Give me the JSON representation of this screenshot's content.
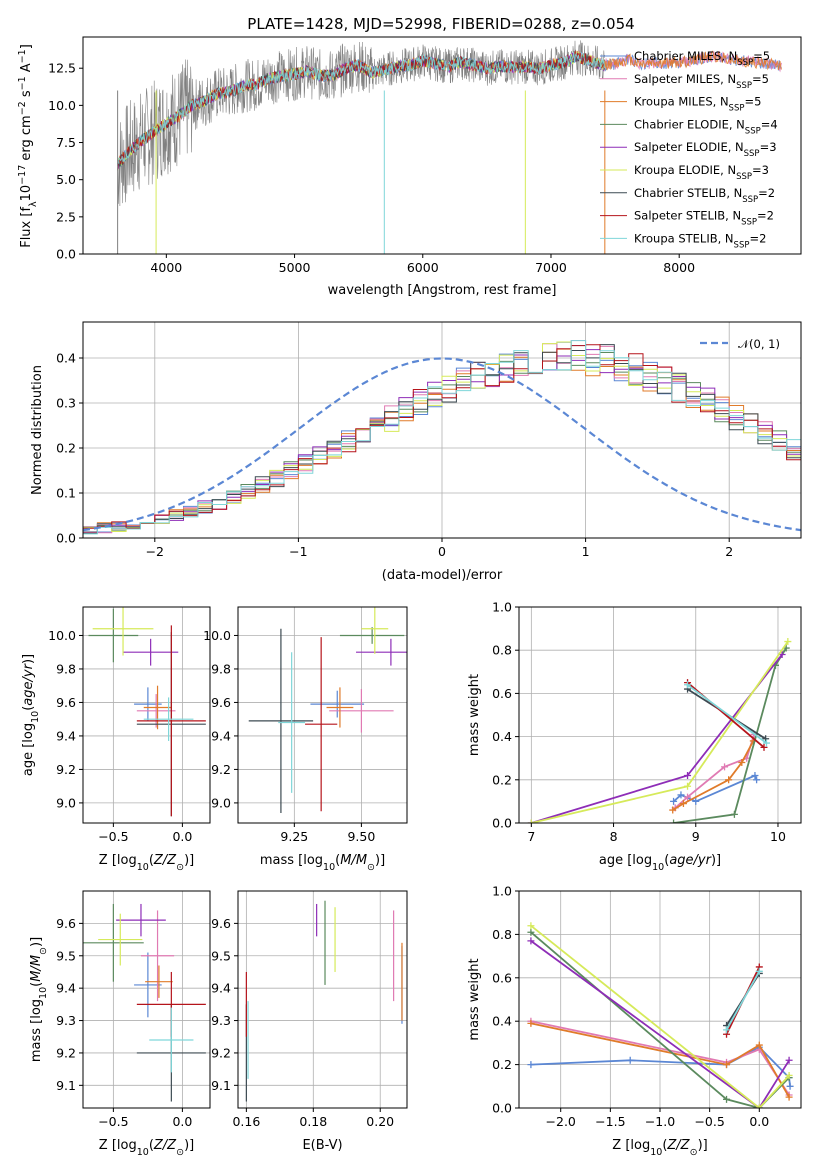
{
  "figure": {
    "title": "PLATE=1428, MJD=52998, FIBERID=0288, z=0.054"
  },
  "models": [
    {
      "name": "Chabrier MILES",
      "nssp": "5",
      "color": "#5b87d4"
    },
    {
      "name": "Salpeter MILES",
      "nssp": "5",
      "color": "#e07ab3"
    },
    {
      "name": "Kroupa MILES",
      "nssp": "5",
      "color": "#e07b2a"
    },
    {
      "name": "Chabrier ELODIE",
      "nssp": "4",
      "color": "#5b8a5e"
    },
    {
      "name": "Salpeter ELODIE",
      "nssp": "3",
      "color": "#8e2db7"
    },
    {
      "name": "Kroupa ELODIE",
      "nssp": "3",
      "color": "#d6ea5a"
    },
    {
      "name": "Chabrier STELIB",
      "nssp": "2",
      "color": "#3c4a52"
    },
    {
      "name": "Salpeter STELIB",
      "nssp": "2",
      "color": "#b5141b"
    },
    {
      "name": "Kroupa STELIB",
      "nssp": "2",
      "color": "#7fd6d9"
    }
  ],
  "chart_data": [
    {
      "id": "spectrum",
      "type": "line",
      "xlabel": "wavelength [Angstrom, rest frame]",
      "ylabel": "Flux [f_λ 10^-17 erg cm^-2 s^-1 A^-1]",
      "xlim": [
        3350,
        8950
      ],
      "ylim": [
        0,
        14.6
      ],
      "xticks": [
        "4000",
        "5000",
        "6000",
        "7000",
        "8000"
      ],
      "yticks": [
        "0.0",
        "2.5",
        "5.0",
        "7.5",
        "10.0",
        "12.5"
      ],
      "data_color": "#808080",
      "data_xrange": [
        3620,
        7420
      ],
      "x": [
        3620,
        3700,
        3800,
        3900,
        4000,
        4100,
        4200,
        4300,
        4400,
        4500,
        4600,
        4700,
        4800,
        4900,
        5000,
        5100,
        5200,
        5300,
        5400,
        5500,
        5600,
        5700,
        5800,
        5900,
        6000,
        6100,
        6200,
        6300,
        6400,
        6500,
        6600,
        6700,
        6800,
        6900,
        7000,
        7100,
        7200,
        7300,
        7400,
        7500,
        7600,
        7700,
        7800,
        7900,
        8000,
        8100,
        8200,
        8300,
        8400,
        8500,
        8600,
        8700,
        8800
      ],
      "model_flux": [
        6.0,
        6.8,
        7.6,
        8.2,
        8.8,
        9.3,
        10.0,
        10.3,
        10.8,
        10.9,
        11.3,
        11.4,
        11.8,
        12.0,
        12.1,
        12.3,
        12.0,
        12.0,
        12.5,
        12.7,
        12.2,
        12.4,
        12.6,
        12.7,
        13.0,
        12.8,
        12.6,
        12.9,
        12.7,
        12.5,
        12.6,
        12.6,
        12.6,
        12.5,
        12.7,
        12.9,
        13.3,
        13.0,
        12.7,
        12.8,
        13.1,
        12.8,
        12.9,
        12.8,
        12.9,
        13.0,
        13.2,
        13.3,
        13.1,
        13.0,
        12.9,
        12.8,
        12.7
      ]
    },
    {
      "id": "residuals",
      "type": "step",
      "xlabel": "(data-model)/error",
      "ylabel": "Normed distribution",
      "xlim": [
        -2.5,
        2.5
      ],
      "ylim": [
        0,
        0.48
      ],
      "xticks": [
        "−2",
        "−1",
        "0",
        "1",
        "2"
      ],
      "yticks": [
        "0.0",
        "0.1",
        "0.2",
        "0.3",
        "0.4"
      ],
      "bin_width": 0.1,
      "bin_start": -2.5,
      "base": [
        0.02,
        0.022,
        0.025,
        0.03,
        0.035,
        0.042,
        0.05,
        0.058,
        0.068,
        0.078,
        0.09,
        0.103,
        0.118,
        0.133,
        0.15,
        0.166,
        0.183,
        0.2,
        0.216,
        0.233,
        0.25,
        0.266,
        0.283,
        0.3,
        0.315,
        0.33,
        0.345,
        0.36,
        0.372,
        0.383,
        0.392,
        0.398,
        0.402,
        0.404,
        0.402,
        0.398,
        0.392,
        0.384,
        0.374,
        0.362,
        0.349,
        0.334,
        0.318,
        0.302,
        0.285,
        0.267,
        0.25,
        0.232,
        0.215,
        0.198,
        0.181,
        0.165,
        0.149,
        0.135,
        0.121,
        0.108,
        0.096,
        0.085,
        0.075,
        0.066,
        0.058,
        0.051,
        0.045,
        0.04,
        0.035,
        0.031,
        0.028,
        0.026,
        0.024,
        0.022
      ],
      "normal_label": "𝒩(0, 1)",
      "normal_color": "#5b87d4"
    },
    {
      "id": "z-age",
      "type": "errorbar",
      "xlabel": "Z [log10(Z/Z⊙)]",
      "ylabel": "age [log10(age/yr)]",
      "xlim": [
        -0.72,
        0.2
      ],
      "ylim": [
        8.88,
        10.17
      ],
      "xticks": [
        "−0.5",
        "0.0"
      ],
      "xtick_vals": [
        -0.5,
        0.0
      ],
      "yticks": [
        "9.0",
        "9.2",
        "9.4",
        "9.6",
        "9.8",
        "10.0"
      ],
      "ytick_vals": [
        9.0,
        9.2,
        9.4,
        9.6,
        9.8,
        10.0
      ],
      "points": [
        {
          "x": -0.25,
          "y": 9.59,
          "xerr": 0.1,
          "yerr": 0.1
        },
        {
          "x": -0.19,
          "y": 9.55,
          "xerr": 0.14,
          "yerr": 0.1
        },
        {
          "x": -0.18,
          "y": 9.57,
          "xerr": 0.1,
          "yerr": 0.13
        },
        {
          "x": -0.5,
          "y": 10.0,
          "xerr": 0.18,
          "yerr": 0.16
        },
        {
          "x": -0.23,
          "y": 9.9,
          "xerr": 0.2,
          "yerr": 0.08
        },
        {
          "x": -0.43,
          "y": 10.04,
          "xerr": 0.22,
          "yerr": 0.16
        },
        {
          "x": -0.08,
          "y": 9.47,
          "xerr": 0.25,
          "yerr": 0.55
        },
        {
          "x": -0.08,
          "y": 9.49,
          "xerr": 0.25,
          "yerr": 0.57
        },
        {
          "x": -0.1,
          "y": 9.5,
          "xerr": 0.18,
          "yerr": 0.13
        }
      ]
    },
    {
      "id": "mass-age",
      "type": "errorbar",
      "xlabel": "mass [log10(M/M⊙)]",
      "ylabel": "",
      "xlim": [
        9.04,
        9.67
      ],
      "ylim": [
        8.88,
        10.17
      ],
      "xticks": [
        "9.25",
        "9.50"
      ],
      "xtick_vals": [
        9.25,
        9.5
      ],
      "yticks": [
        "9.0",
        "9.2",
        "9.4",
        "9.6",
        "9.8",
        "10.0"
      ],
      "ytick_vals": [
        9.0,
        9.2,
        9.4,
        9.6,
        9.8,
        10.0
      ],
      "points": [
        {
          "x": 9.41,
          "y": 9.59,
          "xerr": 0.1,
          "yerr": 0.08
        },
        {
          "x": 9.5,
          "y": 9.55,
          "xerr": 0.12,
          "yerr": 0.13
        },
        {
          "x": 9.42,
          "y": 9.57,
          "xerr": 0.05,
          "yerr": 0.12
        },
        {
          "x": 9.54,
          "y": 10.0,
          "xerr": 0.12,
          "yerr": 0.05
        },
        {
          "x": 9.61,
          "y": 9.9,
          "xerr": 0.13,
          "yerr": 0.08
        },
        {
          "x": 9.55,
          "y": 10.04,
          "xerr": 0.05,
          "yerr": 0.15
        },
        {
          "x": 9.2,
          "y": 9.49,
          "xerr": 0.12,
          "yerr": 0.55
        },
        {
          "x": 9.35,
          "y": 9.47,
          "xerr": 0.06,
          "yerr": 0.52
        },
        {
          "x": 9.24,
          "y": 9.48,
          "xerr": 0.05,
          "yerr": 0.42
        }
      ]
    },
    {
      "id": "age-weight",
      "type": "line",
      "xlabel": "age [log10(age/yr)]",
      "ylabel": "mass weight",
      "xlim": [
        6.85,
        10.28
      ],
      "ylim": [
        0,
        1.0
      ],
      "xticks": [
        "7",
        "8",
        "9",
        "10"
      ],
      "xtick_vals": [
        7,
        8,
        9,
        10
      ],
      "yticks": [
        "0.0",
        "0.2",
        "0.4",
        "0.6",
        "0.8",
        "1.0"
      ],
      "ytick_vals": [
        0,
        0.2,
        0.4,
        0.6,
        0.8,
        1.0
      ],
      "series": [
        {
          "x": [
            8.73,
            8.82,
            9.0,
            9.72,
            9.74
          ],
          "y": [
            0.1,
            0.13,
            0.1,
            0.22,
            0.2
          ]
        },
        {
          "x": [
            8.75,
            8.9,
            9.35,
            9.62,
            9.71
          ],
          "y": [
            0.07,
            0.12,
            0.26,
            0.3,
            0.41
          ]
        },
        {
          "x": [
            8.72,
            8.85,
            9.4,
            9.56,
            9.7
          ],
          "y": [
            0.06,
            0.09,
            0.2,
            0.28,
            0.38
          ]
        },
        {
          "x": [
            8.73,
            9.47,
            9.97,
            10.1
          ],
          "y": [
            0.0,
            0.04,
            0.73,
            0.81
          ]
        },
        {
          "x": [
            7.0,
            8.9,
            10.05
          ],
          "y": [
            0.0,
            0.22,
            0.78
          ]
        },
        {
          "x": [
            7.0,
            8.9,
            10.12
          ],
          "y": [
            0.0,
            0.17,
            0.84
          ]
        },
        {
          "x": [
            8.9,
            9.85
          ],
          "y": [
            0.62,
            0.39
          ]
        },
        {
          "x": [
            8.9,
            9.83
          ],
          "y": [
            0.65,
            0.35
          ]
        },
        {
          "x": [
            8.9,
            9.86
          ],
          "y": [
            0.64,
            0.37
          ]
        }
      ]
    },
    {
      "id": "z-mass",
      "type": "errorbar",
      "xlabel": "Z [log10(Z/Z⊙)]",
      "ylabel": "mass [log10(M/M⊙)]",
      "xlim": [
        -0.72,
        0.2
      ],
      "ylim": [
        9.03,
        9.7
      ],
      "xticks": [
        "−0.5",
        "0.0"
      ],
      "xtick_vals": [
        -0.5,
        0.0
      ],
      "yticks": [
        "9.1",
        "9.2",
        "9.3",
        "9.4",
        "9.5",
        "9.6"
      ],
      "ytick_vals": [
        9.1,
        9.2,
        9.3,
        9.4,
        9.5,
        9.6
      ],
      "points": [
        {
          "x": -0.25,
          "y": 9.41,
          "xerr": 0.1,
          "yerr": 0.1
        },
        {
          "x": -0.18,
          "y": 9.5,
          "xerr": 0.12,
          "yerr": 0.14
        },
        {
          "x": -0.17,
          "y": 9.42,
          "xerr": 0.1,
          "yerr": 0.05
        },
        {
          "x": -0.5,
          "y": 9.54,
          "xerr": 0.22,
          "yerr": 0.12
        },
        {
          "x": -0.3,
          "y": 9.61,
          "xerr": 0.18,
          "yerr": 0.05
        },
        {
          "x": -0.45,
          "y": 9.55,
          "xerr": 0.16,
          "yerr": 0.08
        },
        {
          "x": -0.08,
          "y": 9.2,
          "xerr": 0.25,
          "yerr": 0.15
        },
        {
          "x": -0.08,
          "y": 9.35,
          "xerr": 0.25,
          "yerr": 0.1
        },
        {
          "x": -0.08,
          "y": 9.24,
          "xerr": 0.16,
          "yerr": 0.1
        }
      ]
    },
    {
      "id": "ebv-mass",
      "type": "errorbar",
      "xlabel": "E(B-V)",
      "ylabel": "",
      "xlim": [
        0.1575,
        0.208
      ],
      "ylim": [
        9.03,
        9.7
      ],
      "xticks": [
        "0.16",
        "0.18",
        "0.20"
      ],
      "xtick_vals": [
        0.16,
        0.18,
        0.2
      ],
      "yticks": [
        "9.1",
        "9.2",
        "9.3",
        "9.4",
        "9.5",
        "9.6"
      ],
      "ytick_vals": [
        9.1,
        9.2,
        9.3,
        9.4,
        9.5,
        9.6
      ],
      "points": [
        {
          "x": 0.2065,
          "y": 9.41,
          "xerr": 0,
          "yerr": 0.12
        },
        {
          "x": 0.204,
          "y": 9.5,
          "xerr": 0,
          "yerr": 0.14
        },
        {
          "x": 0.2065,
          "y": 9.42,
          "xerr": 0,
          "yerr": 0.12
        },
        {
          "x": 0.1835,
          "y": 9.54,
          "xerr": 0,
          "yerr": 0.13
        },
        {
          "x": 0.181,
          "y": 9.61,
          "xerr": 0,
          "yerr": 0.05
        },
        {
          "x": 0.1865,
          "y": 9.55,
          "xerr": 0,
          "yerr": 0.1
        },
        {
          "x": 0.16,
          "y": 9.2,
          "xerr": 0,
          "yerr": 0.15
        },
        {
          "x": 0.16,
          "y": 9.35,
          "xerr": 0,
          "yerr": 0.1
        },
        {
          "x": 0.1605,
          "y": 9.24,
          "xerr": 0,
          "yerr": 0.12
        }
      ]
    },
    {
      "id": "z-weight",
      "type": "line",
      "xlabel": "Z [log10(Z/Z⊙)]",
      "ylabel": "mass weight",
      "xlim": [
        -2.42,
        0.42
      ],
      "ylim": [
        0,
        1.0
      ],
      "xticks": [
        "−2.0",
        "−1.5",
        "−1.0",
        "−0.5",
        "0.0"
      ],
      "xtick_vals": [
        -2.0,
        -1.5,
        -1.0,
        -0.5,
        0.0
      ],
      "yticks": [
        "0.0",
        "0.2",
        "0.4",
        "0.6",
        "0.8",
        "1.0"
      ],
      "ytick_vals": [
        0,
        0.2,
        0.4,
        0.6,
        0.8,
        1.0
      ],
      "series": [
        {
          "x": [
            -2.3,
            -1.3,
            -0.33,
            0.0,
            0.3,
            0.31
          ],
          "y": [
            0.2,
            0.22,
            0.2,
            0.28,
            0.14,
            0.1
          ]
        },
        {
          "x": [
            -2.3,
            -0.33,
            0.0,
            0.3
          ],
          "y": [
            0.4,
            0.21,
            0.27,
            0.06
          ]
        },
        {
          "x": [
            -2.3,
            -0.33,
            0.0,
            0.3
          ],
          "y": [
            0.39,
            0.2,
            0.29,
            0.05
          ]
        },
        {
          "x": [
            -2.3,
            -0.33,
            0.0,
            0.3
          ],
          "y": [
            0.81,
            0.04,
            0.0,
            0.14
          ]
        },
        {
          "x": [
            -2.3,
            0.0,
            0.3
          ],
          "y": [
            0.77,
            0.0,
            0.22
          ]
        },
        {
          "x": [
            -2.3,
            0.0,
            0.3
          ],
          "y": [
            0.84,
            0.0,
            0.15
          ]
        },
        {
          "x": [
            -0.33,
            0.0
          ],
          "y": [
            0.38,
            0.62
          ]
        },
        {
          "x": [
            -0.33,
            0.0
          ],
          "y": [
            0.34,
            0.65
          ]
        },
        {
          "x": [
            -0.33,
            0.0
          ],
          "y": [
            0.36,
            0.63
          ]
        }
      ]
    }
  ]
}
